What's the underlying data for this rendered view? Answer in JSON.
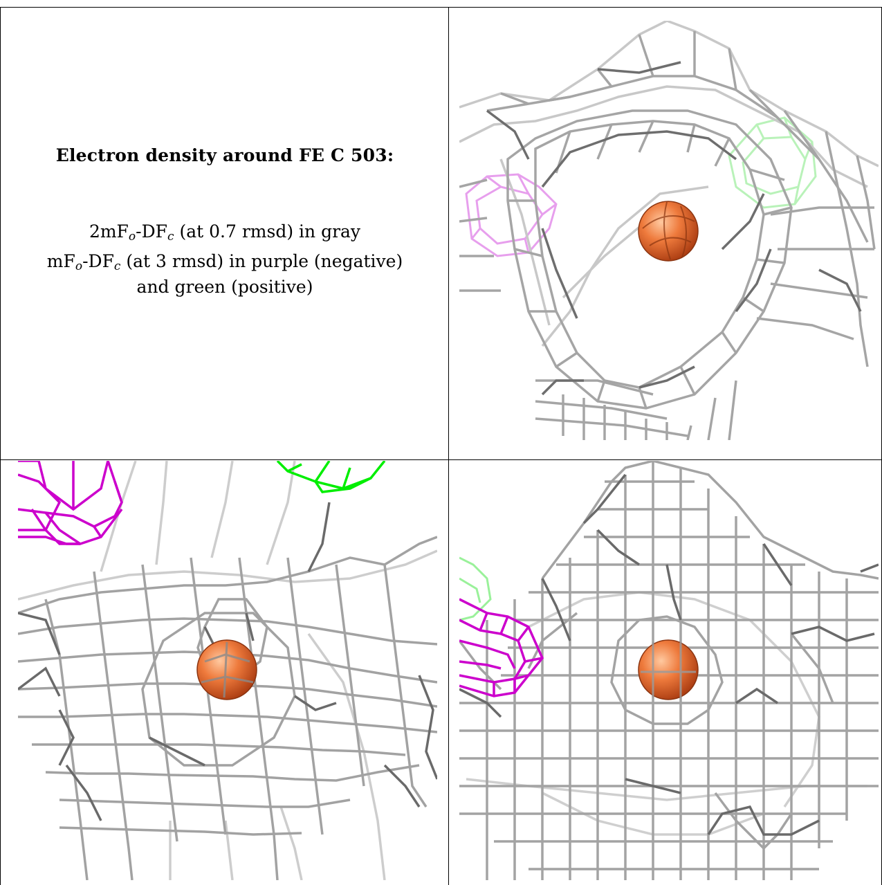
{
  "caption": {
    "title": "Electron density around FE C 503:",
    "line1": {
      "a": "2mF",
      "sub_o": "o",
      "b": "-DF",
      "sub_c": "c",
      "rest": " (at 0.7 rmsd) in gray"
    },
    "line2": {
      "a": "mF",
      "sub_o": "o",
      "b": "-DF",
      "sub_c": "c",
      "rest": " (at 3 rmsd) in purple (negative)"
    },
    "line3": "and green (positive)"
  },
  "colors": {
    "mesh_2fofc": "#9a9a9a",
    "mesh_fofc_negative": "#cc00cc",
    "mesh_fofc_positive": "#00ee00",
    "iron_atom": "#e8662a"
  },
  "panels": [
    {
      "view": "view-1",
      "atom_label": "FE C 503"
    },
    {
      "view": "view-2",
      "atom_label": "FE C 503"
    },
    {
      "view": "view-3",
      "atom_label": "FE C 503"
    }
  ]
}
